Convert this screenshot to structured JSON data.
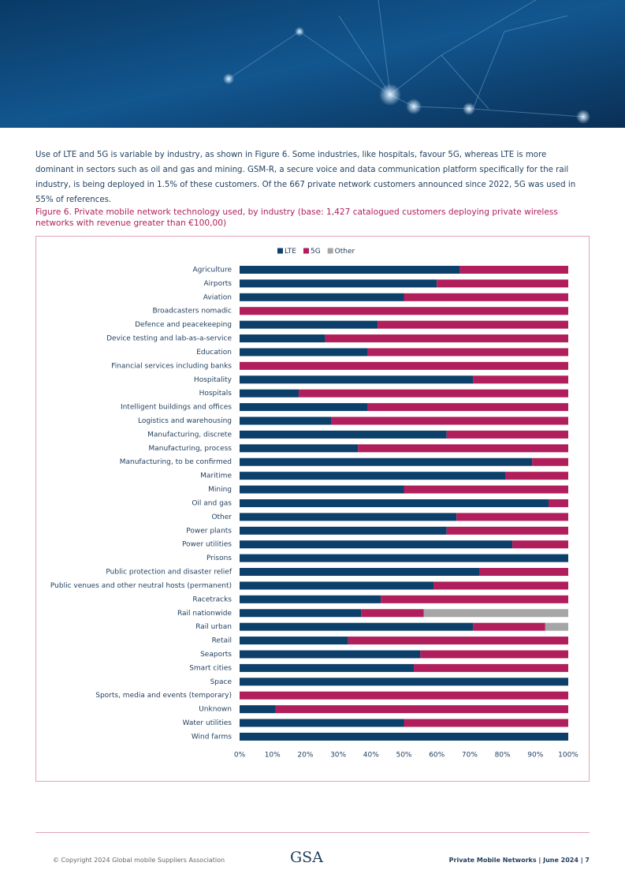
{
  "intro": "Use of LTE and 5G is variable by industry, as shown in Figure 6. Some industries, like hospitals, favour 5G, whereas LTE is more dominant in sectors such as oil and gas and mining. GSM-R, a secure voice and data communication platform specifically for the rail industry, is being deployed in 1.5% of these customers. Of the 667 private network customers announced since 2022, 5G was used in 55% of references.",
  "chart_data": {
    "type": "stacked_bar_horizontal",
    "title": "Figure 6. Private mobile network technology used, by industry (base: 1,427 catalogued customers deploying private wireless networks with revenue greater than €100,00)",
    "categories": [
      "Agriculture",
      "Airports",
      "Aviation",
      "Broadcasters nomadic",
      "Defence and peacekeeping",
      "Device testing and lab-as-a-service",
      "Education",
      "Financial services including banks",
      "Hospitality",
      "Hospitals",
      "Intelligent buildings and offices",
      "Logistics and warehousing",
      "Manufacturing, discrete",
      "Manufacturing, process",
      "Manufacturing, to be confirmed",
      "Maritime",
      "Mining",
      "Oil and gas",
      "Other",
      "Power plants",
      "Power utilities",
      "Prisons",
      "Public protection and disaster relief",
      "Public venues and other neutral hosts (permanent)",
      "Racetracks",
      "Rail nationwide",
      "Rail urban",
      "Retail",
      "Seaports",
      "Smart cities",
      "Space",
      "Sports, media and events (temporary)",
      "Unknown",
      "Water utilities",
      "Wind farms"
    ],
    "series": [
      {
        "name": "LTE",
        "color": "#0d3f6b",
        "values": [
          67,
          60,
          50,
          0,
          42,
          26,
          39,
          0,
          71,
          18,
          39,
          28,
          63,
          36,
          89,
          81,
          50,
          94,
          66,
          63,
          83,
          100,
          73,
          59,
          43,
          37,
          71,
          33,
          55,
          53,
          100,
          0,
          11,
          50,
          100
        ]
      },
      {
        "name": "5G",
        "color": "#b01e5c",
        "values": [
          33,
          40,
          50,
          100,
          58,
          74,
          61,
          100,
          29,
          82,
          61,
          72,
          37,
          64,
          11,
          19,
          50,
          6,
          34,
          37,
          17,
          0,
          27,
          41,
          57,
          19,
          22,
          67,
          45,
          47,
          0,
          100,
          89,
          50,
          0
        ]
      },
      {
        "name": "Other",
        "color": "#a6a6a6",
        "values": [
          0,
          0,
          0,
          0,
          0,
          0,
          0,
          0,
          0,
          0,
          0,
          0,
          0,
          0,
          0,
          0,
          0,
          0,
          0,
          0,
          0,
          0,
          0,
          0,
          0,
          44,
          7,
          0,
          0,
          0,
          0,
          0,
          0,
          0,
          0
        ]
      }
    ],
    "xlim": [
      0,
      100
    ],
    "xticks": [
      {
        "value": 0,
        "label": "0%"
      },
      {
        "value": 10,
        "label": "10%"
      },
      {
        "value": 20,
        "label": "20%"
      },
      {
        "value": 30,
        "label": "30%"
      },
      {
        "value": 40,
        "label": "40%"
      },
      {
        "value": 50,
        "label": "50%"
      },
      {
        "value": 60,
        "label": "60%"
      },
      {
        "value": 70,
        "label": "70%"
      },
      {
        "value": 80,
        "label": "80%"
      },
      {
        "value": 90,
        "label": "90%"
      },
      {
        "value": 100,
        "label": "100%"
      }
    ],
    "legend": "top",
    "grid": false
  },
  "footer": {
    "copyright": "© Copyright 2024 Global mobile Suppliers Association",
    "logo": "GSA",
    "page_info": "Private Mobile Networks | June 2024 | 7"
  }
}
